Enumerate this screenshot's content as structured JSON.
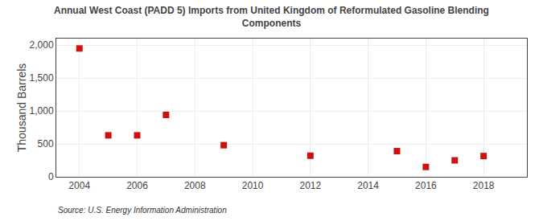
{
  "chart_data": {
    "type": "scatter",
    "title": "Annual West Coast (PADD 5) Imports from United Kingdom of Reformulated Gasoline Blending\nComponents",
    "y_label": "Thousand Barrels",
    "annotations": [
      "Source: U.S. Energy Information Administration"
    ],
    "x": [
      2004,
      2005,
      2006,
      2007,
      2009,
      2012,
      2015,
      2016,
      2017,
      2018
    ],
    "values": [
      1950,
      630,
      630,
      940,
      480,
      320,
      390,
      150,
      250,
      315
    ],
    "color": "#cc1111",
    "marker": "square",
    "xlim": [
      2003.2,
      2019.5
    ],
    "xticks": [
      2004,
      2006,
      2008,
      2010,
      2012,
      2014,
      2016,
      2018
    ],
    "ylim": [
      0,
      2100
    ],
    "yticks": [
      0,
      500,
      {
        "value": 1000,
        "label": "1,000"
      },
      {
        "value": 1500,
        "label": "1,500"
      },
      {
        "value": 2000,
        "label": "2,000"
      }
    ],
    "grid": true
  }
}
